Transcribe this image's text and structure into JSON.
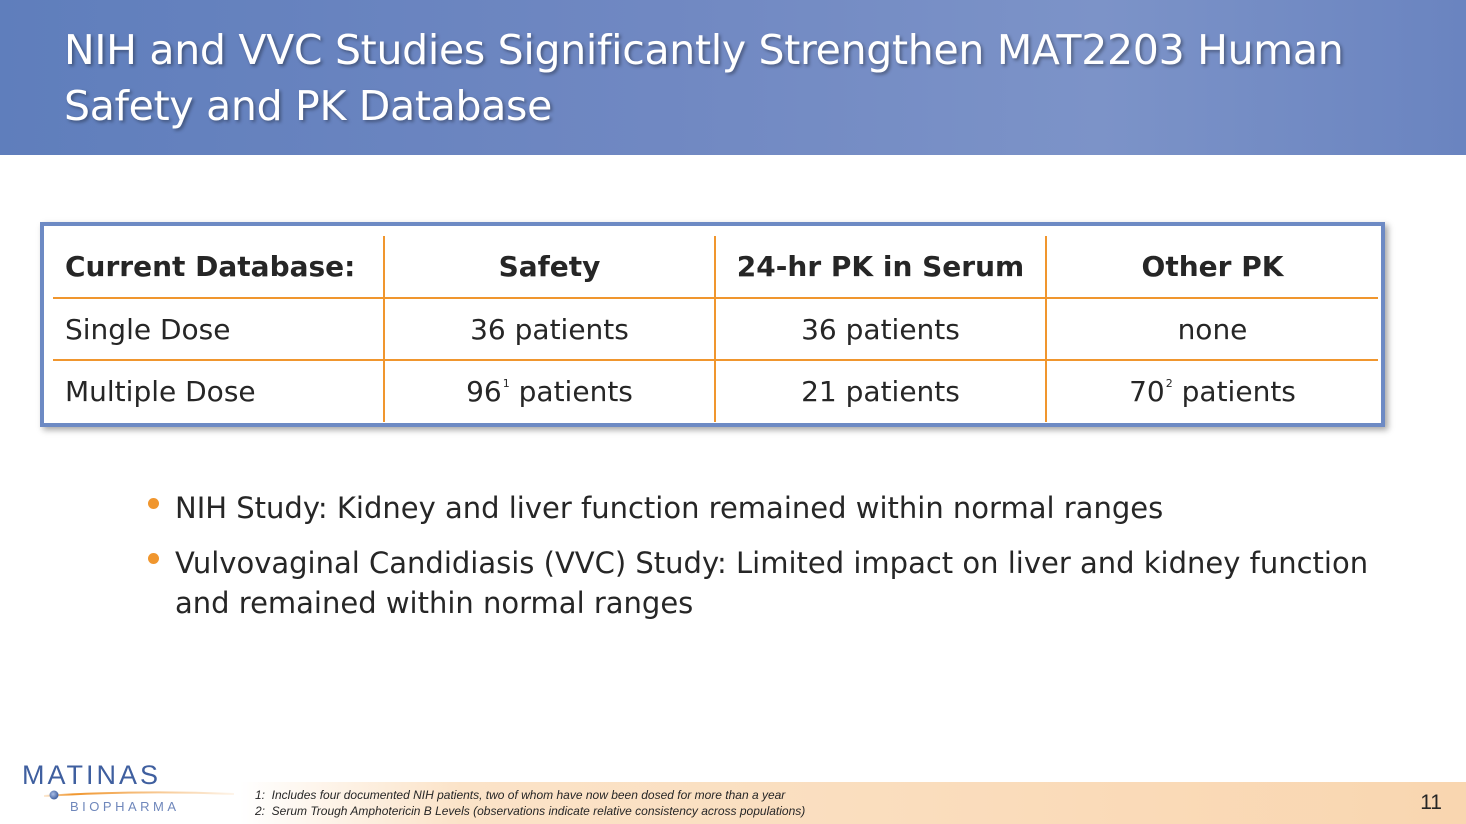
{
  "slide": {
    "title": "NIH and VVC Studies Significantly Strengthen MAT2203 Human Safety and PK Database",
    "page_number": "11"
  },
  "table": {
    "headers": [
      "Current Database:",
      "Safety",
      "24-hr PK in Serum",
      "Other PK"
    ],
    "rows": [
      {
        "label": "Single Dose",
        "safety": {
          "value": "36 patients",
          "sup": ""
        },
        "pk_serum": {
          "value": "36 patients",
          "sup": ""
        },
        "other_pk": {
          "value": "none",
          "sup": ""
        }
      },
      {
        "label": "Multiple Dose",
        "safety": {
          "number": "96",
          "sup": "1",
          "unit": " patients"
        },
        "pk_serum": {
          "value": "21 patients",
          "sup": ""
        },
        "other_pk": {
          "number": "70",
          "sup": "2",
          "unit": " patients"
        }
      }
    ]
  },
  "bullets": [
    "NIH Study: Kidney and liver function remained within normal ranges",
    "Vulvovaginal Candidiasis (VVC) Study: Limited impact on liver and kidney function and remained within normal ranges"
  ],
  "footnotes": [
    "1:  Includes four documented NIH patients, two of whom have now been dosed for more than a year",
    "2:  Serum Trough Amphotericin B Levels (observations indicate relative consistency across populations)"
  ],
  "logo": {
    "name": "MATINAS",
    "sub": "BIOPHARMA"
  },
  "colors": {
    "header_blue": "#6a84c0",
    "table_border": "#6d8ac4",
    "accent_orange": "#f0962e",
    "logo_blue": "#3f5f9f"
  }
}
